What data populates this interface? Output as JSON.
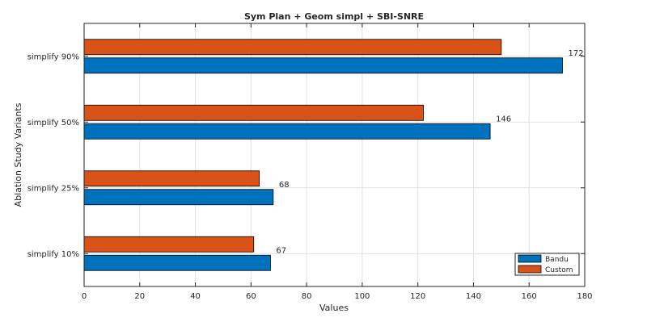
{
  "chart_data": {
    "type": "bar",
    "orientation": "horizontal",
    "title": "Sym Plan + Geom simpl + SBI-SNRE",
    "xlabel": "Values",
    "ylabel": "Ablation Study Variants",
    "xlim": [
      0,
      180
    ],
    "xticks": [
      0,
      20,
      40,
      60,
      80,
      100,
      120,
      140,
      160,
      180
    ],
    "grid": true,
    "legend_position": "bottom-right",
    "categories": [
      "simplify 10%",
      "simplify 25%",
      "simplify 50%",
      "simplify 90%"
    ],
    "series": [
      {
        "name": "Bandu",
        "color": "#0072BD",
        "values": [
          67,
          68,
          146,
          172
        ],
        "labels": [
          "67",
          "68",
          "146",
          "172"
        ]
      },
      {
        "name": "Custom",
        "color": "#D95319",
        "values": [
          61,
          63,
          122,
          150
        ]
      }
    ]
  }
}
